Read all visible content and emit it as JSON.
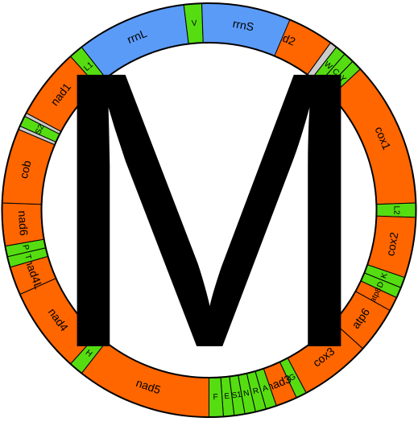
{
  "colors": {
    "protein_coding": "#ff6600",
    "rrna": "#5b9bf8",
    "trna": "#55dd11",
    "noncoding": "#cccccc",
    "outline": "#000000"
  },
  "center_letter": "M",
  "segments": [
    {
      "label": "",
      "type": "noncoding",
      "start": -24.5,
      "end": -1.5
    },
    {
      "label": "I",
      "type": "trna",
      "start": -1.5,
      "end": 1.5
    },
    {
      "label": "Q",
      "type": "trna",
      "start": 1.5,
      "end": 4.5
    },
    {
      "label": "M",
      "type": "trna",
      "start": 4.5,
      "end": 9.5
    },
    {
      "label": "",
      "type": "noncoding",
      "start": 9.5,
      "end": 10.5
    },
    {
      "label": "nad2",
      "type": "protein_coding",
      "start": 10.5,
      "end": 36
    },
    {
      "label": "",
      "type": "noncoding",
      "start": 36,
      "end": 38
    },
    {
      "label": "W",
      "type": "trna",
      "start": 38,
      "end": 41
    },
    {
      "label": "C",
      "type": "trna",
      "start": 41,
      "end": 44
    },
    {
      "label": "Y",
      "type": "trna",
      "start": 44,
      "end": 47
    },
    {
      "label": "cox1",
      "type": "protein_coding",
      "start": 47,
      "end": 88
    },
    {
      "label": "L2",
      "type": "trna",
      "start": 88,
      "end": 92
    },
    {
      "label": "cox2",
      "type": "protein_coding",
      "start": 92,
      "end": 109
    },
    {
      "label": "K",
      "type": "trna",
      "start": 109,
      "end": 112
    },
    {
      "label": "D",
      "type": "trna",
      "start": 112,
      "end": 115
    },
    {
      "label": "atp8",
      "type": "protein_coding",
      "start": 115,
      "end": 119
    },
    {
      "label": "atp6",
      "type": "protein_coding",
      "start": 119,
      "end": 132
    },
    {
      "label": "cox3",
      "type": "protein_coding",
      "start": 132,
      "end": 152
    },
    {
      "label": "G",
      "type": "trna",
      "start": 152,
      "end": 155
    },
    {
      "label": "nad3",
      "type": "protein_coding",
      "start": 155,
      "end": 161
    },
    {
      "label": "A",
      "type": "trna",
      "start": 161,
      "end": 164
    },
    {
      "label": "R",
      "type": "trna",
      "start": 164,
      "end": 167
    },
    {
      "label": "N",
      "type": "trna",
      "start": 167,
      "end": 170
    },
    {
      "label": "S1",
      "type": "trna",
      "start": 170,
      "end": 173
    },
    {
      "label": "E",
      "type": "trna",
      "start": 173,
      "end": 176
    },
    {
      "label": "F",
      "type": "trna",
      "start": 176,
      "end": 180
    },
    {
      "label": "nad5",
      "type": "protein_coding",
      "start": 180,
      "end": 218
    },
    {
      "label": "H",
      "type": "trna",
      "start": 218,
      "end": 222
    },
    {
      "label": "nad4",
      "type": "protein_coding",
      "start": 222,
      "end": 246
    },
    {
      "label": "nad4L",
      "type": "protein_coding",
      "start": 246,
      "end": 254
    },
    {
      "label": "T",
      "type": "trna",
      "start": 254,
      "end": 257
    },
    {
      "label": "P",
      "type": "trna",
      "start": 257,
      "end": 260
    },
    {
      "label": "nad6",
      "type": "protein_coding",
      "start": 260,
      "end": 272
    },
    {
      "label": "cob",
      "type": "protein_coding",
      "start": 272,
      "end": 293
    },
    {
      "label": "",
      "type": "noncoding",
      "start": 293,
      "end": 294
    },
    {
      "label": "S2",
      "type": "trna",
      "start": 294,
      "end": 297
    },
    {
      "label": "",
      "type": "noncoding",
      "start": 297,
      "end": 298
    },
    {
      "label": "nad1",
      "type": "protein_coding",
      "start": 298,
      "end": 318
    },
    {
      "label": "L1",
      "type": "trna",
      "start": 318,
      "end": 322
    },
    {
      "label": "rrnL",
      "type": "rrna",
      "start": 322,
      "end": 353
    },
    {
      "label": "V",
      "type": "trna",
      "start": 353,
      "end": 358
    },
    {
      "label": "rrnS",
      "type": "rrna",
      "start": 358,
      "end": 383
    },
    {
      "label": "",
      "type": "noncoding",
      "start": 383,
      "end": 335.5
    }
  ]
}
